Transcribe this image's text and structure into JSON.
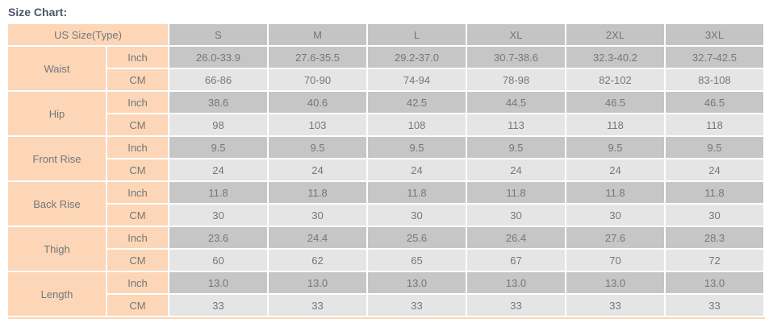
{
  "title": "Size Chart:",
  "chart_data": {
    "type": "table",
    "title": "Size Chart:",
    "corner_header": "US Size(Type)",
    "columns": [
      "S",
      "M",
      "L",
      "XL",
      "2XL",
      "3XL"
    ],
    "unit_labels": [
      "Inch",
      "CM"
    ],
    "rows": [
      {
        "label": "Waist",
        "inch": [
          "26.0-33.9",
          "27.6-35.5",
          "29.2-37.0",
          "30.7-38.6",
          "32.3-40.2",
          "32.7-42.5"
        ],
        "cm": [
          "66-86",
          "70-90",
          "74-94",
          "78-98",
          "82-102",
          "83-108"
        ]
      },
      {
        "label": "Hip",
        "inch": [
          "38.6",
          "40.6",
          "42.5",
          "44.5",
          "46.5",
          "46.5"
        ],
        "cm": [
          "98",
          "103",
          "108",
          "113",
          "118",
          "118"
        ]
      },
      {
        "label": "Front Rise",
        "inch": [
          "9.5",
          "9.5",
          "9.5",
          "9.5",
          "9.5",
          "9.5"
        ],
        "cm": [
          "24",
          "24",
          "24",
          "24",
          "24",
          "24"
        ]
      },
      {
        "label": "Back Rise",
        "inch": [
          "11.8",
          "11.8",
          "11.8",
          "11.8",
          "11.8",
          "11.8"
        ],
        "cm": [
          "30",
          "30",
          "30",
          "30",
          "30",
          "30"
        ]
      },
      {
        "label": "Thigh",
        "inch": [
          "23.6",
          "24.4",
          "25.6",
          "26.4",
          "27.6",
          "28.3"
        ],
        "cm": [
          "60",
          "62",
          "65",
          "67",
          "70",
          "72"
        ]
      },
      {
        "label": "Length",
        "inch": [
          "13.0",
          "13.0",
          "13.0",
          "13.0",
          "13.0",
          "13.0"
        ],
        "cm": [
          "33",
          "33",
          "33",
          "33",
          "33",
          "33"
        ]
      }
    ]
  },
  "colors": {
    "peach": "#fcd6b6",
    "header_gray": "#c4c4c4",
    "inch_row_gray": "#c6c6c6",
    "cm_row_gray": "#e5e5e5",
    "text": "#73777c",
    "title_text": "#4c5568"
  }
}
